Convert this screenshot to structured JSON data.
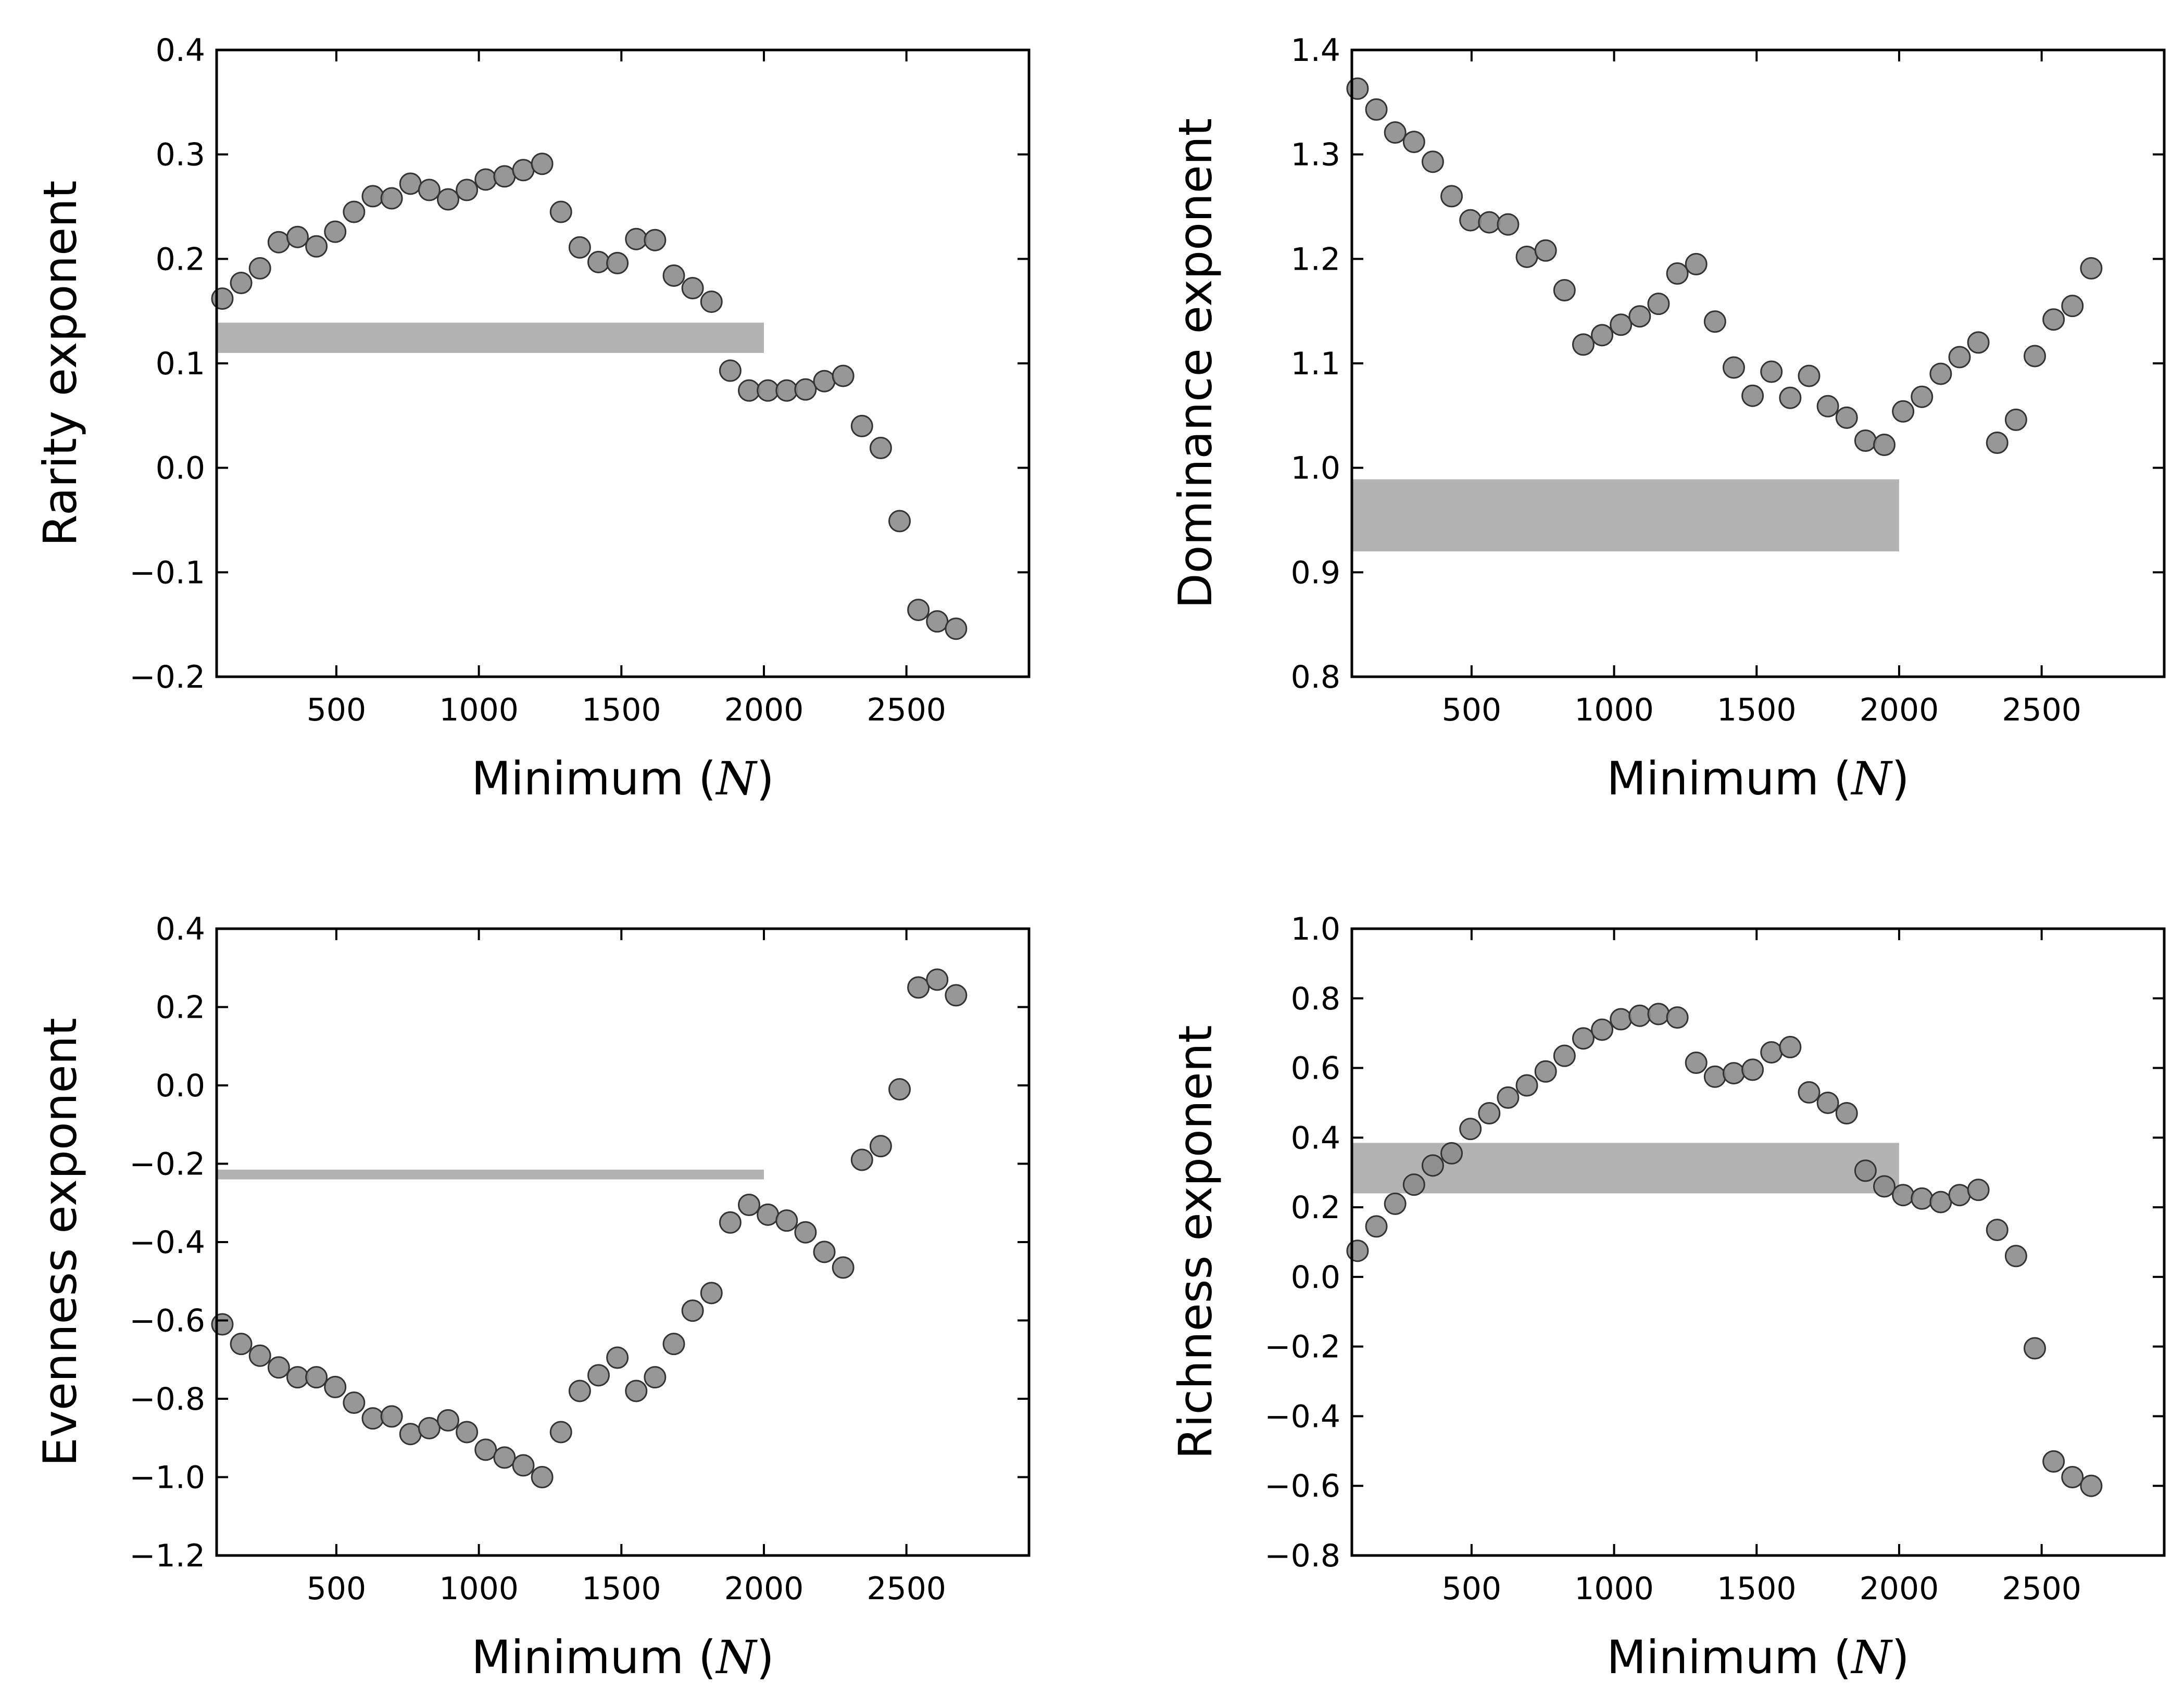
{
  "figure": {
    "background": "#ffffff",
    "marker_color": "#8c8c8c",
    "marker_edge": "#333333",
    "band_color": "#b3b3b3"
  },
  "chart_data": [
    {
      "type": "scatter",
      "ylabel": "Rarity exponent",
      "xlabel": {
        "prefix": "Minimum (",
        "symbol": "N",
        "suffix": ")"
      },
      "xlim": [
        80,
        2930
      ],
      "ylim": [
        -0.2,
        0.4
      ],
      "xticks": [
        500,
        1000,
        1500,
        2000,
        2500
      ],
      "xtick_labels": [
        "500",
        "1000",
        "1500",
        "2000",
        "2500"
      ],
      "yticks": [
        -0.2,
        -0.1,
        0.0,
        0.1,
        0.2,
        0.3,
        0.4
      ],
      "ytick_labels": [
        "−0.2",
        "−0.1",
        "0.0",
        "0.1",
        "0.2",
        "0.3",
        "0.4"
      ],
      "band": {
        "x0": 80,
        "x1": 2000,
        "y0": 0.11,
        "y1": 0.139
      },
      "x": [
        100,
        166,
        232,
        298,
        364,
        430,
        496,
        562,
        628,
        694,
        760,
        826,
        892,
        958,
        1024,
        1090,
        1156,
        1222,
        1288,
        1354,
        1420,
        1486,
        1552,
        1618,
        1684,
        1750,
        1816,
        1882,
        1948,
        2014,
        2080,
        2146,
        2212,
        2278,
        2344,
        2410,
        2476,
        2542,
        2608,
        2674
      ],
      "y": [
        0.162,
        0.177,
        0.191,
        0.216,
        0.221,
        0.212,
        0.226,
        0.245,
        0.26,
        0.258,
        0.272,
        0.266,
        0.257,
        0.266,
        0.276,
        0.279,
        0.285,
        0.291,
        0.245,
        0.211,
        0.197,
        0.196,
        0.219,
        0.218,
        0.184,
        0.172,
        0.159,
        0.093,
        0.074,
        0.074,
        0.074,
        0.075,
        0.083,
        0.088,
        0.04,
        0.019,
        -0.051,
        -0.136,
        -0.147,
        -0.154
      ]
    },
    {
      "type": "scatter",
      "ylabel": "Dominance exponent",
      "xlabel": {
        "prefix": "Minimum (",
        "symbol": "N",
        "suffix": ")"
      },
      "xlim": [
        80,
        2930
      ],
      "ylim": [
        0.8,
        1.4
      ],
      "xticks": [
        500,
        1000,
        1500,
        2000,
        2500
      ],
      "xtick_labels": [
        "500",
        "1000",
        "1500",
        "2000",
        "2500"
      ],
      "yticks": [
        0.8,
        0.9,
        1.0,
        1.1,
        1.2,
        1.3,
        1.4
      ],
      "ytick_labels": [
        "0.8",
        "0.9",
        "1.0",
        "1.1",
        "1.2",
        "1.3",
        "1.4"
      ],
      "band": {
        "x0": 80,
        "x1": 2000,
        "y0": 0.92,
        "y1": 0.989
      },
      "x": [
        100,
        166,
        232,
        298,
        364,
        430,
        496,
        562,
        628,
        694,
        760,
        826,
        892,
        958,
        1024,
        1090,
        1156,
        1222,
        1288,
        1354,
        1420,
        1486,
        1552,
        1618,
        1684,
        1750,
        1816,
        1882,
        1948,
        2014,
        2080,
        2146,
        2212,
        2278,
        2344,
        2410,
        2476,
        2542,
        2608,
        2674
      ],
      "y": [
        1.363,
        1.343,
        1.321,
        1.312,
        1.293,
        1.26,
        1.237,
        1.235,
        1.233,
        1.202,
        1.208,
        1.17,
        1.118,
        1.127,
        1.137,
        1.145,
        1.157,
        1.186,
        1.195,
        1.14,
        1.096,
        1.069,
        1.092,
        1.067,
        1.088,
        1.059,
        1.048,
        1.026,
        1.022,
        1.054,
        1.068,
        1.09,
        1.106,
        1.12,
        1.024,
        1.046,
        1.107,
        1.142,
        1.155,
        1.191
      ]
    },
    {
      "type": "scatter",
      "ylabel": "Evenness exponent",
      "xlabel": {
        "prefix": "Minimum (",
        "symbol": "N",
        "suffix": ")"
      },
      "xlim": [
        80,
        2930
      ],
      "ylim": [
        -1.2,
        0.4
      ],
      "xticks": [
        500,
        1000,
        1500,
        2000,
        2500
      ],
      "xtick_labels": [
        "500",
        "1000",
        "1500",
        "2000",
        "2500"
      ],
      "yticks": [
        -1.2,
        -1.0,
        -0.8,
        -0.6,
        -0.4,
        -0.2,
        0.0,
        0.2,
        0.4
      ],
      "ytick_labels": [
        "−1.2",
        "−1.0",
        "−0.8",
        "−0.6",
        "−0.4",
        "−0.2",
        "0.0",
        "0.2",
        "0.4"
      ],
      "band": {
        "x0": 80,
        "x1": 2000,
        "y0": -0.24,
        "y1": -0.215
      },
      "x": [
        100,
        166,
        232,
        298,
        364,
        430,
        496,
        562,
        628,
        694,
        760,
        826,
        892,
        958,
        1024,
        1090,
        1156,
        1222,
        1288,
        1354,
        1420,
        1486,
        1552,
        1618,
        1684,
        1750,
        1816,
        1882,
        1948,
        2014,
        2080,
        2146,
        2212,
        2278,
        2344,
        2410,
        2476,
        2542,
        2608,
        2674
      ],
      "y": [
        -0.61,
        -0.66,
        -0.69,
        -0.72,
        -0.745,
        -0.745,
        -0.77,
        -0.81,
        -0.85,
        -0.845,
        -0.89,
        -0.875,
        -0.855,
        -0.885,
        -0.93,
        -0.95,
        -0.97,
        -1.0,
        -0.885,
        -0.78,
        -0.74,
        -0.695,
        -0.78,
        -0.745,
        -0.66,
        -0.575,
        -0.53,
        -0.35,
        -0.305,
        -0.33,
        -0.345,
        -0.375,
        -0.425,
        -0.465,
        -0.19,
        -0.155,
        -0.01,
        0.25,
        0.27,
        0.23
      ]
    },
    {
      "type": "scatter",
      "ylabel": "Richness exponent",
      "xlabel": {
        "prefix": "Minimum (",
        "symbol": "N",
        "suffix": ")"
      },
      "xlim": [
        80,
        2930
      ],
      "ylim": [
        -0.8,
        1.0
      ],
      "xticks": [
        500,
        1000,
        1500,
        2000,
        2500
      ],
      "xtick_labels": [
        "500",
        "1000",
        "1500",
        "2000",
        "2500"
      ],
      "yticks": [
        -0.8,
        -0.6,
        -0.4,
        -0.2,
        0.0,
        0.2,
        0.4,
        0.6,
        0.8,
        1.0
      ],
      "ytick_labels": [
        "−0.8",
        "−0.6",
        "−0.4",
        "−0.2",
        "0.0",
        "0.2",
        "0.4",
        "0.6",
        "0.8",
        "1.0"
      ],
      "band": {
        "x0": 80,
        "x1": 2000,
        "y0": 0.24,
        "y1": 0.385
      },
      "x": [
        100,
        166,
        232,
        298,
        364,
        430,
        496,
        562,
        628,
        694,
        760,
        826,
        892,
        958,
        1024,
        1090,
        1156,
        1222,
        1288,
        1354,
        1420,
        1486,
        1552,
        1618,
        1684,
        1750,
        1816,
        1882,
        1948,
        2014,
        2080,
        2146,
        2212,
        2278,
        2344,
        2410,
        2476,
        2542,
        2608,
        2674
      ],
      "y": [
        0.075,
        0.145,
        0.21,
        0.265,
        0.32,
        0.355,
        0.425,
        0.47,
        0.515,
        0.55,
        0.59,
        0.635,
        0.685,
        0.71,
        0.74,
        0.75,
        0.755,
        0.745,
        0.615,
        0.575,
        0.585,
        0.595,
        0.645,
        0.66,
        0.53,
        0.5,
        0.47,
        0.305,
        0.26,
        0.235,
        0.225,
        0.215,
        0.235,
        0.25,
        0.135,
        0.06,
        -0.205,
        -0.53,
        -0.575,
        -0.6
      ]
    }
  ]
}
